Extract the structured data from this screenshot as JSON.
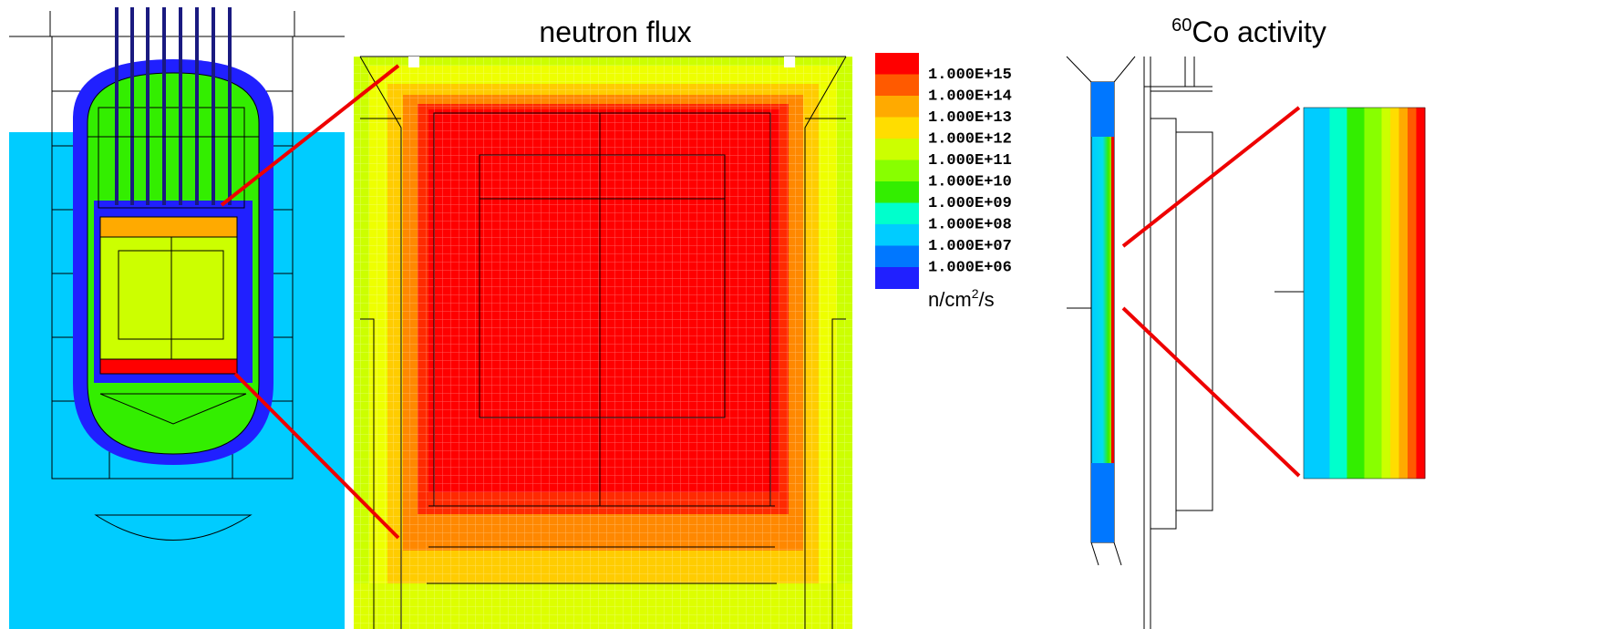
{
  "flux_title": "neutron flux",
  "activity_title": {
    "superscript": "60",
    "text": "Co activity"
  },
  "legend": {
    "colors": [
      "#ff0000",
      "#ff5a00",
      "#ffaa00",
      "#ffdd00",
      "#ccff00",
      "#88ff00",
      "#33ee00",
      "#00ffcc",
      "#00ccff",
      "#0077ff",
      "#2020ff"
    ],
    "labels": [
      "1.000E+15",
      "1.000E+14",
      "1.000E+13",
      "1.000E+12",
      "1.000E+11",
      "1.000E+10",
      "1.000E+09",
      "1.000E+08",
      "1.000E+07",
      "1.000E+06"
    ],
    "unit": {
      "base": "n/cm",
      "superscript": "2",
      "suffix": "/s"
    }
  }
}
